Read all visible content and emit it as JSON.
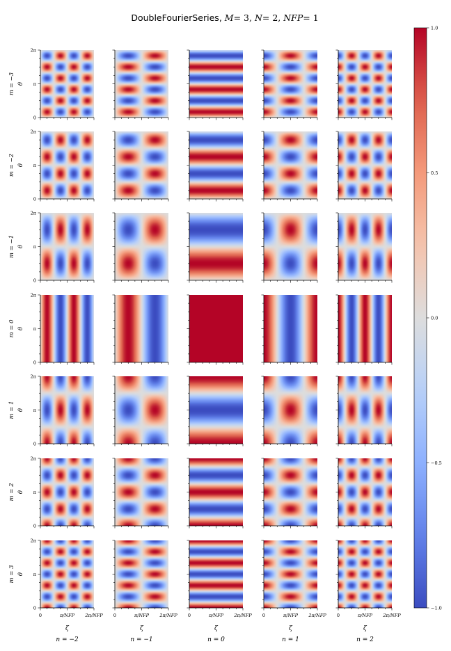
{
  "chart_data": {
    "type": "heatmap",
    "title_parts": {
      "name": "DoubleFourierSeries, ",
      "m_label": "M",
      "m_value": "= 3, ",
      "n_label": "N",
      "n_value": "= 2, ",
      "nfp_label": "NFP",
      "nfp_value": "= 1"
    },
    "modes_m": [
      -3,
      -2,
      -1,
      0,
      1,
      2,
      3
    ],
    "modes_n": [
      -2,
      -1,
      0,
      1,
      2
    ],
    "NFP": 1,
    "basis_rule": "m>=0: cos(|m|*theta) else sin(|m|*theta); n>=0: cos(|n|*NFP*zeta) else sin(|n|*NFP*zeta)",
    "row_labels": [
      "m = −3",
      "m = −2",
      "m = −1",
      "m = 0",
      "m = 1",
      "m = 2",
      "m = 3"
    ],
    "col_labels": [
      "n = −2",
      "n = −1",
      "n = 0",
      "n = 1",
      "n = 2"
    ],
    "ylabel": "θ",
    "xlabel": "ζ",
    "y_ticks": [
      "0",
      "π",
      "2π"
    ],
    "x_ticks": [
      "0",
      "π/NFP",
      "2π/NFP"
    ],
    "colorbar": {
      "colormap": "coolwarm",
      "min": -1.0,
      "max": 1.0,
      "ticks": [
        -1.0,
        -0.5,
        0.0,
        0.5,
        1.0
      ],
      "tick_labels": [
        "−1.0",
        "−0.5",
        "0.0",
        "0.5",
        "1.0"
      ]
    },
    "colors": {
      "low": "#3b4cc0",
      "mid": "#dddddd",
      "high": "#b40426"
    }
  }
}
